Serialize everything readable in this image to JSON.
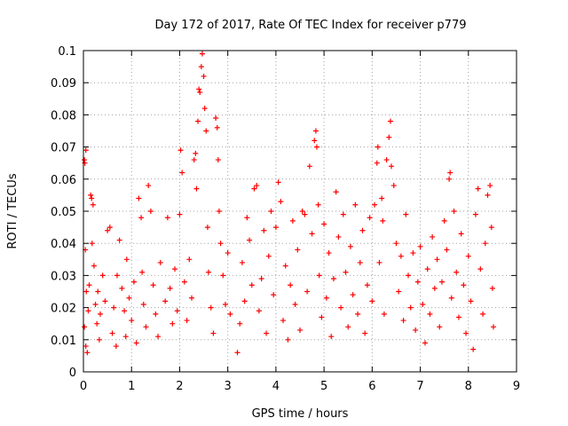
{
  "chart_data": {
    "type": "scatter",
    "title": "Day 172 of 2017, Rate Of TEC Index for receiver p779",
    "xlabel": "GPS time / hours",
    "ylabel": "ROTI / TECUs",
    "xlim": [
      0,
      9
    ],
    "ylim": [
      0,
      0.1
    ],
    "x_ticks": [
      0,
      1,
      2,
      3,
      4,
      5,
      6,
      7,
      8,
      9
    ],
    "y_ticks": [
      0,
      0.01,
      0.02,
      0.03,
      0.04,
      0.05,
      0.06,
      0.07,
      0.08,
      0.09,
      0.1
    ],
    "x_tick_labels": [
      "0",
      "1",
      "2",
      "3",
      "4",
      "5",
      "6",
      "7",
      "8",
      "9"
    ],
    "y_tick_labels": [
      "0",
      "0.01",
      "0.02",
      "0.03",
      "0.04",
      "0.05",
      "0.06",
      "0.07",
      "0.08",
      "0.09",
      "0.1"
    ],
    "grid": true,
    "marker": "+",
    "series": [
      {
        "name": "ROTI",
        "color": "#ff0000",
        "points": [
          [
            0.02,
            0.066
          ],
          [
            0.03,
            0.065
          ],
          [
            0.05,
            0.069
          ],
          [
            0.04,
            0.038
          ],
          [
            0.06,
            0.025
          ],
          [
            0.02,
            0.014
          ],
          [
            0.05,
            0.008
          ],
          [
            0.08,
            0.006
          ],
          [
            0.1,
            0.019
          ],
          [
            0.12,
            0.027
          ],
          [
            0.15,
            0.055
          ],
          [
            0.17,
            0.054
          ],
          [
            0.2,
            0.052
          ],
          [
            0.18,
            0.04
          ],
          [
            0.22,
            0.033
          ],
          [
            0.25,
            0.021
          ],
          [
            0.28,
            0.015
          ],
          [
            0.3,
            0.025
          ],
          [
            0.33,
            0.01
          ],
          [
            0.35,
            0.018
          ],
          [
            0.4,
            0.03
          ],
          [
            0.45,
            0.022
          ],
          [
            0.5,
            0.044
          ],
          [
            0.55,
            0.045
          ],
          [
            0.6,
            0.012
          ],
          [
            0.63,
            0.02
          ],
          [
            0.68,
            0.008
          ],
          [
            0.7,
            0.03
          ],
          [
            0.75,
            0.041
          ],
          [
            0.8,
            0.026
          ],
          [
            0.85,
            0.019
          ],
          [
            0.88,
            0.011
          ],
          [
            0.9,
            0.035
          ],
          [
            0.95,
            0.023
          ],
          [
            1.0,
            0.016
          ],
          [
            1.05,
            0.028
          ],
          [
            1.1,
            0.009
          ],
          [
            1.15,
            0.054
          ],
          [
            1.2,
            0.048
          ],
          [
            1.22,
            0.031
          ],
          [
            1.25,
            0.021
          ],
          [
            1.3,
            0.014
          ],
          [
            1.35,
            0.058
          ],
          [
            1.4,
            0.05
          ],
          [
            1.45,
            0.027
          ],
          [
            1.5,
            0.018
          ],
          [
            1.55,
            0.011
          ],
          [
            1.6,
            0.034
          ],
          [
            1.7,
            0.022
          ],
          [
            1.75,
            0.048
          ],
          [
            1.8,
            0.026
          ],
          [
            1.85,
            0.015
          ],
          [
            1.9,
            0.032
          ],
          [
            1.95,
            0.019
          ],
          [
            2.0,
            0.049
          ],
          [
            2.02,
            0.069
          ],
          [
            2.05,
            0.062
          ],
          [
            2.1,
            0.028
          ],
          [
            2.15,
            0.016
          ],
          [
            2.2,
            0.035
          ],
          [
            2.25,
            0.023
          ],
          [
            2.3,
            0.066
          ],
          [
            2.33,
            0.068
          ],
          [
            2.35,
            0.057
          ],
          [
            2.38,
            0.078
          ],
          [
            2.4,
            0.088
          ],
          [
            2.42,
            0.087
          ],
          [
            2.45,
            0.095
          ],
          [
            2.47,
            0.099
          ],
          [
            2.5,
            0.092
          ],
          [
            2.52,
            0.082
          ],
          [
            2.55,
            0.075
          ],
          [
            2.58,
            0.045
          ],
          [
            2.6,
            0.031
          ],
          [
            2.65,
            0.02
          ],
          [
            2.7,
            0.012
          ],
          [
            2.75,
            0.079
          ],
          [
            2.78,
            0.076
          ],
          [
            2.8,
            0.066
          ],
          [
            2.82,
            0.05
          ],
          [
            2.85,
            0.04
          ],
          [
            2.9,
            0.03
          ],
          [
            2.95,
            0.021
          ],
          [
            3.0,
            0.037
          ],
          [
            3.05,
            0.018
          ],
          [
            3.2,
            0.006
          ],
          [
            3.25,
            0.015
          ],
          [
            3.3,
            0.034
          ],
          [
            3.35,
            0.022
          ],
          [
            3.4,
            0.048
          ],
          [
            3.45,
            0.041
          ],
          [
            3.5,
            0.027
          ],
          [
            3.55,
            0.057
          ],
          [
            3.6,
            0.058
          ],
          [
            3.65,
            0.019
          ],
          [
            3.7,
            0.029
          ],
          [
            3.75,
            0.044
          ],
          [
            3.8,
            0.012
          ],
          [
            3.85,
            0.036
          ],
          [
            3.9,
            0.05
          ],
          [
            3.95,
            0.024
          ],
          [
            4.0,
            0.045
          ],
          [
            4.05,
            0.059
          ],
          [
            4.1,
            0.053
          ],
          [
            4.15,
            0.016
          ],
          [
            4.2,
            0.033
          ],
          [
            4.25,
            0.01
          ],
          [
            4.3,
            0.027
          ],
          [
            4.35,
            0.047
          ],
          [
            4.4,
            0.021
          ],
          [
            4.45,
            0.038
          ],
          [
            4.5,
            0.013
          ],
          [
            4.55,
            0.05
          ],
          [
            4.6,
            0.049
          ],
          [
            4.65,
            0.025
          ],
          [
            4.7,
            0.064
          ],
          [
            4.75,
            0.043
          ],
          [
            4.8,
            0.072
          ],
          [
            4.83,
            0.075
          ],
          [
            4.85,
            0.07
          ],
          [
            4.88,
            0.052
          ],
          [
            4.9,
            0.03
          ],
          [
            4.95,
            0.017
          ],
          [
            5.0,
            0.046
          ],
          [
            5.05,
            0.023
          ],
          [
            5.1,
            0.037
          ],
          [
            5.15,
            0.011
          ],
          [
            5.2,
            0.029
          ],
          [
            5.25,
            0.056
          ],
          [
            5.3,
            0.042
          ],
          [
            5.35,
            0.02
          ],
          [
            5.4,
            0.049
          ],
          [
            5.45,
            0.031
          ],
          [
            5.5,
            0.014
          ],
          [
            5.55,
            0.039
          ],
          [
            5.6,
            0.024
          ],
          [
            5.65,
            0.052
          ],
          [
            5.7,
            0.018
          ],
          [
            5.75,
            0.034
          ],
          [
            5.8,
            0.044
          ],
          [
            5.85,
            0.012
          ],
          [
            5.9,
            0.027
          ],
          [
            5.95,
            0.048
          ],
          [
            6.0,
            0.022
          ],
          [
            6.05,
            0.052
          ],
          [
            6.1,
            0.065
          ],
          [
            6.12,
            0.07
          ],
          [
            6.15,
            0.034
          ],
          [
            6.2,
            0.054
          ],
          [
            6.22,
            0.047
          ],
          [
            6.25,
            0.018
          ],
          [
            6.3,
            0.066
          ],
          [
            6.35,
            0.073
          ],
          [
            6.38,
            0.078
          ],
          [
            6.4,
            0.064
          ],
          [
            6.45,
            0.058
          ],
          [
            6.5,
            0.04
          ],
          [
            6.55,
            0.025
          ],
          [
            6.6,
            0.036
          ],
          [
            6.65,
            0.016
          ],
          [
            6.7,
            0.049
          ],
          [
            6.75,
            0.03
          ],
          [
            6.8,
            0.02
          ],
          [
            6.85,
            0.037
          ],
          [
            6.9,
            0.013
          ],
          [
            6.95,
            0.028
          ],
          [
            7.0,
            0.039
          ],
          [
            7.05,
            0.021
          ],
          [
            7.1,
            0.009
          ],
          [
            7.15,
            0.032
          ],
          [
            7.2,
            0.018
          ],
          [
            7.25,
            0.042
          ],
          [
            7.3,
            0.026
          ],
          [
            7.35,
            0.035
          ],
          [
            7.4,
            0.014
          ],
          [
            7.45,
            0.028
          ],
          [
            7.5,
            0.047
          ],
          [
            7.55,
            0.038
          ],
          [
            7.6,
            0.06
          ],
          [
            7.62,
            0.062
          ],
          [
            7.65,
            0.023
          ],
          [
            7.7,
            0.05
          ],
          [
            7.75,
            0.031
          ],
          [
            7.8,
            0.017
          ],
          [
            7.85,
            0.043
          ],
          [
            7.9,
            0.027
          ],
          [
            7.95,
            0.012
          ],
          [
            8.0,
            0.036
          ],
          [
            8.05,
            0.022
          ],
          [
            8.1,
            0.007
          ],
          [
            8.15,
            0.049
          ],
          [
            8.2,
            0.057
          ],
          [
            8.25,
            0.032
          ],
          [
            8.3,
            0.018
          ],
          [
            8.35,
            0.04
          ],
          [
            8.4,
            0.055
          ],
          [
            8.45,
            0.058
          ],
          [
            8.48,
            0.045
          ],
          [
            8.5,
            0.026
          ],
          [
            8.52,
            0.014
          ]
        ]
      }
    ]
  }
}
